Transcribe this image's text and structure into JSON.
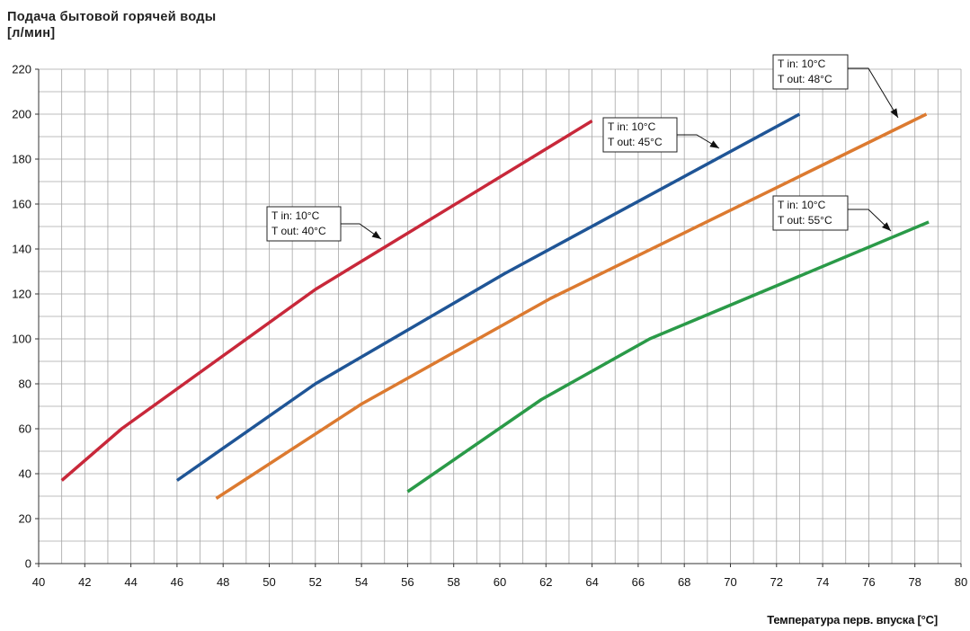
{
  "chart_data": {
    "type": "line",
    "title_lines": [
      "Подача бытовой горячей воды",
      "[л/мин]"
    ],
    "xlabel": "Температура перв. впуска [°C]",
    "xlim": [
      40,
      80
    ],
    "ylim": [
      0,
      220
    ],
    "x_ticks": [
      "40",
      "42",
      "44",
      "46",
      "48",
      "50",
      "52",
      "54",
      "56",
      "58",
      "60",
      "62",
      "64",
      "66",
      "68",
      "70",
      "72",
      "74",
      "76",
      "78",
      "80"
    ],
    "y_ticks": [
      "0",
      "20",
      "40",
      "60",
      "80",
      "100",
      "120",
      "140",
      "160",
      "180",
      "200",
      "220"
    ],
    "grid": true,
    "series": [
      {
        "name": "T in: 10°C / T out: 40°C",
        "label_lines": [
          "T in: 10°C",
          "T out: 40°C"
        ],
        "color": "#c8283a",
        "x": [
          41,
          43.6,
          52,
          64
        ],
        "y": [
          37,
          60,
          122,
          197
        ]
      },
      {
        "name": "T in: 10°C / T out: 45°C",
        "label_lines": [
          "T in: 10°C",
          "T out: 45°C"
        ],
        "color": "#1f5596",
        "x": [
          46,
          52,
          60.2,
          73
        ],
        "y": [
          37,
          80,
          129,
          200
        ]
      },
      {
        "name": "T in: 10°C / T out: 48°C",
        "label_lines": [
          "T in: 10°C",
          "T out: 48°C"
        ],
        "color": "#dc7a30",
        "x": [
          47.7,
          54,
          62.2,
          78.5
        ],
        "y": [
          29,
          71,
          118,
          200
        ]
      },
      {
        "name": "T in: 10°C / T out: 55°C",
        "label_lines": [
          "T in: 10°C",
          "T out: 55°C"
        ],
        "color": "#2a9a48",
        "x": [
          56,
          61.8,
          66.5,
          78.6
        ],
        "y": [
          32,
          73,
          100,
          152
        ]
      }
    ]
  }
}
